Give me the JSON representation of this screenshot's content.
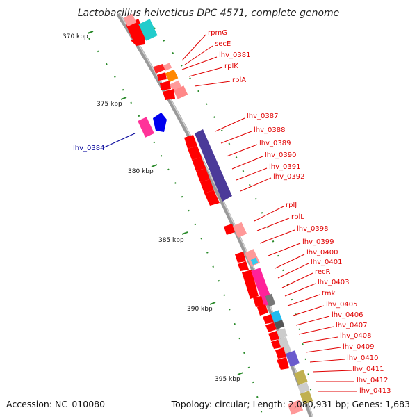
{
  "title": "Lactobacillus helveticus DPC 4571, complete genome",
  "footer": {
    "accession": "Accession: NC_010080",
    "topology": "Topology: circular; Length: 2,080,931 bp; Genes: 1,683"
  },
  "scale_ticks": [
    "370 kbp",
    "375 kbp",
    "380 kbp",
    "385 kbp",
    "390 kbp",
    "395 kbp"
  ],
  "colors": {
    "backbone": "#a0a0a0",
    "gene_red": "#ff0000",
    "label_red": "#e00000",
    "label_blue": "#000099",
    "tick_green": "#2a8a2a"
  },
  "right_labels": [
    "rpmG",
    "secE",
    "lhv_0381",
    "rplK",
    "rplA",
    "lhv_0387",
    "lhv_0388",
    "lhv_0389",
    "lhv_0390",
    "lhv_0391",
    "lhv_0392",
    "rplJ",
    "rplL",
    "lhv_0398",
    "lhv_0399",
    "lhv_0400",
    "lhv_0401",
    "recR",
    "lhv_0403",
    "tmk",
    "lhv_0405",
    "lhv_0406",
    "lhv_0407",
    "lhv_0408",
    "lhv_0409",
    "lhv_0410",
    "lhv_0411",
    "lhv_0412",
    "lhv_0413"
  ],
  "left_labels": [
    "lhv_0384"
  ]
}
